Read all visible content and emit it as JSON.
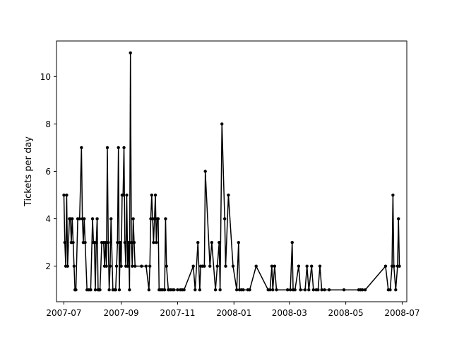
{
  "chart_data": {
    "type": "line",
    "title": "",
    "xlabel": "",
    "ylabel": "Tickets per day",
    "xlim": [
      "2007-06-23",
      "2008-07-06"
    ],
    "ylim": [
      0.5,
      11.5
    ],
    "grid": false,
    "legend": "none",
    "line_color": "#000000",
    "marker": "dot",
    "x_ticks": [
      "2007-07",
      "2007-09",
      "2007-11",
      "2008-01",
      "2008-03",
      "2008-05",
      "2008-07"
    ],
    "y_ticks": [
      2,
      4,
      6,
      8,
      10
    ],
    "points": [
      [
        "2007-07-01",
        5
      ],
      [
        "2007-07-02",
        3
      ],
      [
        "2007-07-03",
        2
      ],
      [
        "2007-07-04",
        5
      ],
      [
        "2007-07-05",
        2
      ],
      [
        "2007-07-07",
        4
      ],
      [
        "2007-07-08",
        4
      ],
      [
        "2007-07-09",
        3
      ],
      [
        "2007-07-10",
        4
      ],
      [
        "2007-07-11",
        3
      ],
      [
        "2007-07-12",
        2
      ],
      [
        "2007-07-13",
        1
      ],
      [
        "2007-07-14",
        1
      ],
      [
        "2007-07-16",
        4
      ],
      [
        "2007-07-18",
        4
      ],
      [
        "2007-07-20",
        7
      ],
      [
        "2007-07-21",
        4
      ],
      [
        "2007-07-22",
        3
      ],
      [
        "2007-07-23",
        4
      ],
      [
        "2007-07-24",
        3
      ],
      [
        "2007-07-26",
        1
      ],
      [
        "2007-07-28",
        1
      ],
      [
        "2007-07-30",
        1
      ],
      [
        "2007-08-01",
        4
      ],
      [
        "2007-08-02",
        3
      ],
      [
        "2007-08-03",
        3
      ],
      [
        "2007-08-04",
        1
      ],
      [
        "2007-08-05",
        3
      ],
      [
        "2007-08-06",
        4
      ],
      [
        "2007-08-07",
        1
      ],
      [
        "2007-08-08",
        1
      ],
      [
        "2007-08-09",
        1
      ],
      [
        "2007-08-11",
        3
      ],
      [
        "2007-08-13",
        3
      ],
      [
        "2007-08-14",
        2
      ],
      [
        "2007-08-15",
        3
      ],
      [
        "2007-08-16",
        2
      ],
      [
        "2007-08-17",
        7
      ],
      [
        "2007-08-18",
        3
      ],
      [
        "2007-08-19",
        1
      ],
      [
        "2007-08-20",
        2
      ],
      [
        "2007-08-21",
        4
      ],
      [
        "2007-08-23",
        1
      ],
      [
        "2007-08-25",
        1
      ],
      [
        "2007-08-26",
        1
      ],
      [
        "2007-08-27",
        2
      ],
      [
        "2007-08-28",
        3
      ],
      [
        "2007-08-29",
        7
      ],
      [
        "2007-08-30",
        1
      ],
      [
        "2007-08-31",
        3
      ],
      [
        "2007-09-01",
        2
      ],
      [
        "2007-09-02",
        5
      ],
      [
        "2007-09-03",
        5
      ],
      [
        "2007-09-04",
        7
      ],
      [
        "2007-09-05",
        3
      ],
      [
        "2007-09-06",
        2
      ],
      [
        "2007-09-07",
        5
      ],
      [
        "2007-09-08",
        2
      ],
      [
        "2007-09-09",
        3
      ],
      [
        "2007-09-10",
        1
      ],
      [
        "2007-09-11",
        11
      ],
      [
        "2007-09-12",
        3
      ],
      [
        "2007-09-13",
        2
      ],
      [
        "2007-09-14",
        4
      ],
      [
        "2007-09-15",
        3
      ],
      [
        "2007-09-16",
        2
      ],
      [
        "2007-09-23",
        2
      ],
      [
        "2007-09-28",
        2
      ],
      [
        "2007-10-01",
        1
      ],
      [
        "2007-10-02",
        2
      ],
      [
        "2007-10-03",
        4
      ],
      [
        "2007-10-04",
        5
      ],
      [
        "2007-10-05",
        4
      ],
      [
        "2007-10-06",
        3
      ],
      [
        "2007-10-07",
        4
      ],
      [
        "2007-10-08",
        5
      ],
      [
        "2007-10-09",
        3
      ],
      [
        "2007-10-10",
        4
      ],
      [
        "2007-10-11",
        4
      ],
      [
        "2007-10-12",
        1
      ],
      [
        "2007-10-14",
        1
      ],
      [
        "2007-10-16",
        1
      ],
      [
        "2007-10-18",
        1
      ],
      [
        "2007-10-19",
        4
      ],
      [
        "2007-10-20",
        2
      ],
      [
        "2007-10-22",
        1
      ],
      [
        "2007-10-24",
        1
      ],
      [
        "2007-10-26",
        1
      ],
      [
        "2007-10-28",
        1
      ],
      [
        "2007-11-01",
        1
      ],
      [
        "2007-11-04",
        1
      ],
      [
        "2007-11-06",
        1
      ],
      [
        "2007-11-08",
        1
      ],
      [
        "2007-11-18",
        2
      ],
      [
        "2007-11-20",
        1
      ],
      [
        "2007-11-23",
        3
      ],
      [
        "2007-11-25",
        1
      ],
      [
        "2007-11-26",
        2
      ],
      [
        "2007-11-28",
        2
      ],
      [
        "2007-11-30",
        2
      ],
      [
        "2007-12-01",
        6
      ],
      [
        "2007-12-06",
        2
      ],
      [
        "2007-12-08",
        3
      ],
      [
        "2007-12-12",
        1
      ],
      [
        "2007-12-14",
        2
      ],
      [
        "2007-12-16",
        3
      ],
      [
        "2007-12-17",
        1
      ],
      [
        "2007-12-19",
        8
      ],
      [
        "2007-12-22",
        4
      ],
      [
        "2007-12-23",
        2
      ],
      [
        "2007-12-26",
        5
      ],
      [
        "2007-12-31",
        2
      ],
      [
        "2008-01-04",
        1
      ],
      [
        "2008-01-06",
        3
      ],
      [
        "2008-01-07",
        1
      ],
      [
        "2008-01-09",
        1
      ],
      [
        "2008-01-11",
        1
      ],
      [
        "2008-01-16",
        1
      ],
      [
        "2008-01-18",
        1
      ],
      [
        "2008-01-25",
        2
      ],
      [
        "2008-02-07",
        1
      ],
      [
        "2008-02-09",
        1
      ],
      [
        "2008-02-11",
        2
      ],
      [
        "2008-02-12",
        1
      ],
      [
        "2008-02-14",
        2
      ],
      [
        "2008-02-16",
        1
      ],
      [
        "2008-02-28",
        1
      ],
      [
        "2008-03-02",
        1
      ],
      [
        "2008-03-04",
        3
      ],
      [
        "2008-03-05",
        1
      ],
      [
        "2008-03-07",
        1
      ],
      [
        "2008-03-11",
        2
      ],
      [
        "2008-03-13",
        1
      ],
      [
        "2008-03-18",
        1
      ],
      [
        "2008-03-20",
        2
      ],
      [
        "2008-03-22",
        1
      ],
      [
        "2008-03-25",
        2
      ],
      [
        "2008-03-27",
        1
      ],
      [
        "2008-03-30",
        1
      ],
      [
        "2008-04-01",
        1
      ],
      [
        "2008-04-03",
        2
      ],
      [
        "2008-04-05",
        1
      ],
      [
        "2008-04-08",
        1
      ],
      [
        "2008-04-13",
        1
      ],
      [
        "2008-04-29",
        1
      ],
      [
        "2008-05-15",
        1
      ],
      [
        "2008-05-17",
        1
      ],
      [
        "2008-05-19",
        1
      ],
      [
        "2008-05-22",
        1
      ],
      [
        "2008-06-13",
        2
      ],
      [
        "2008-06-16",
        1
      ],
      [
        "2008-06-18",
        1
      ],
      [
        "2008-06-20",
        2
      ],
      [
        "2008-06-21",
        5
      ],
      [
        "2008-06-22",
        2
      ],
      [
        "2008-06-24",
        1
      ],
      [
        "2008-06-26",
        2
      ],
      [
        "2008-06-27",
        4
      ],
      [
        "2008-06-28",
        2
      ]
    ]
  }
}
